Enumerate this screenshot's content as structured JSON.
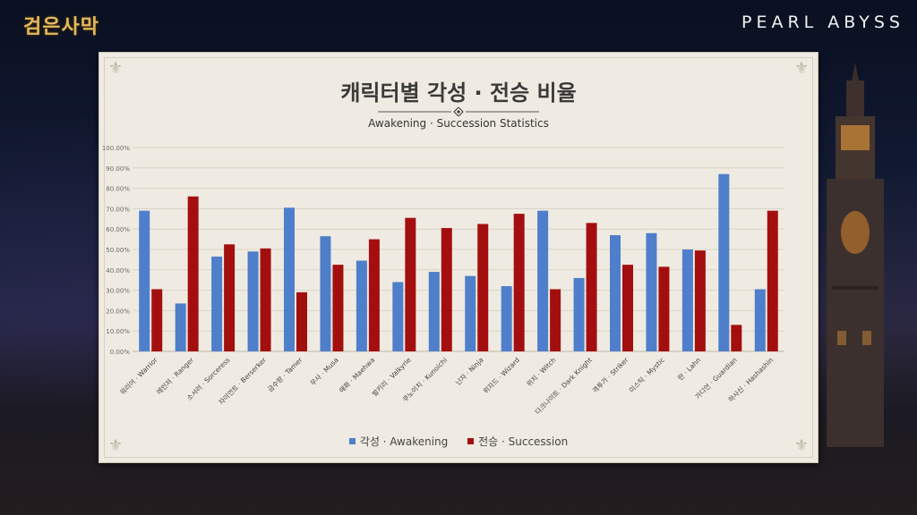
{
  "header": {
    "game_logo": "검은사막",
    "company_logo": "PEARL ABYSS"
  },
  "chart_data": {
    "type": "bar",
    "title": "캐릭터별 각성 · 전승 비율",
    "subtitle": "Awakening · Succession Statistics",
    "categories": [
      "워리어 · Warrior",
      "레인저 · Ranger",
      "소서러 · Sorceress",
      "자이언트 · Berserker",
      "금수랑 · Tamer",
      "무사 · Musa",
      "매화 · Maehwa",
      "발키리 · Valkyrie",
      "쿠노이치 · Kunoichi",
      "닌자 · Ninja",
      "위자드 · Wizard",
      "위치 · Witch",
      "다크나이트 · Dark Knight",
      "격투가 · Striker",
      "미스틱 · Mystic",
      "란 · Lahn",
      "가디언 · Guardian",
      "하사신 · Hashashin"
    ],
    "series": [
      {
        "name": "각성 · Awakening",
        "color": "#4f7fcb",
        "values": [
          69,
          23.5,
          46.5,
          49,
          70.5,
          56.5,
          44.5,
          34,
          39,
          37,
          32,
          69,
          36,
          57,
          58,
          50,
          87,
          30.5
        ]
      },
      {
        "name": "전승 · Succession",
        "color": "#a30f0f",
        "values": [
          30.5,
          76,
          52.5,
          50.5,
          29,
          42.5,
          55,
          65.5,
          60.5,
          62.5,
          67.5,
          30.5,
          63,
          42.5,
          41.5,
          49.5,
          13,
          69
        ]
      }
    ],
    "y_ticks": [
      "0.00%",
      "10.00%",
      "20.00%",
      "30.00%",
      "40.00%",
      "50.00%",
      "60.00%",
      "70.00%",
      "80.00%",
      "90.00%",
      "100.00%"
    ],
    "ylim": [
      0,
      100
    ],
    "grid": true,
    "legend_position": "bottom"
  }
}
